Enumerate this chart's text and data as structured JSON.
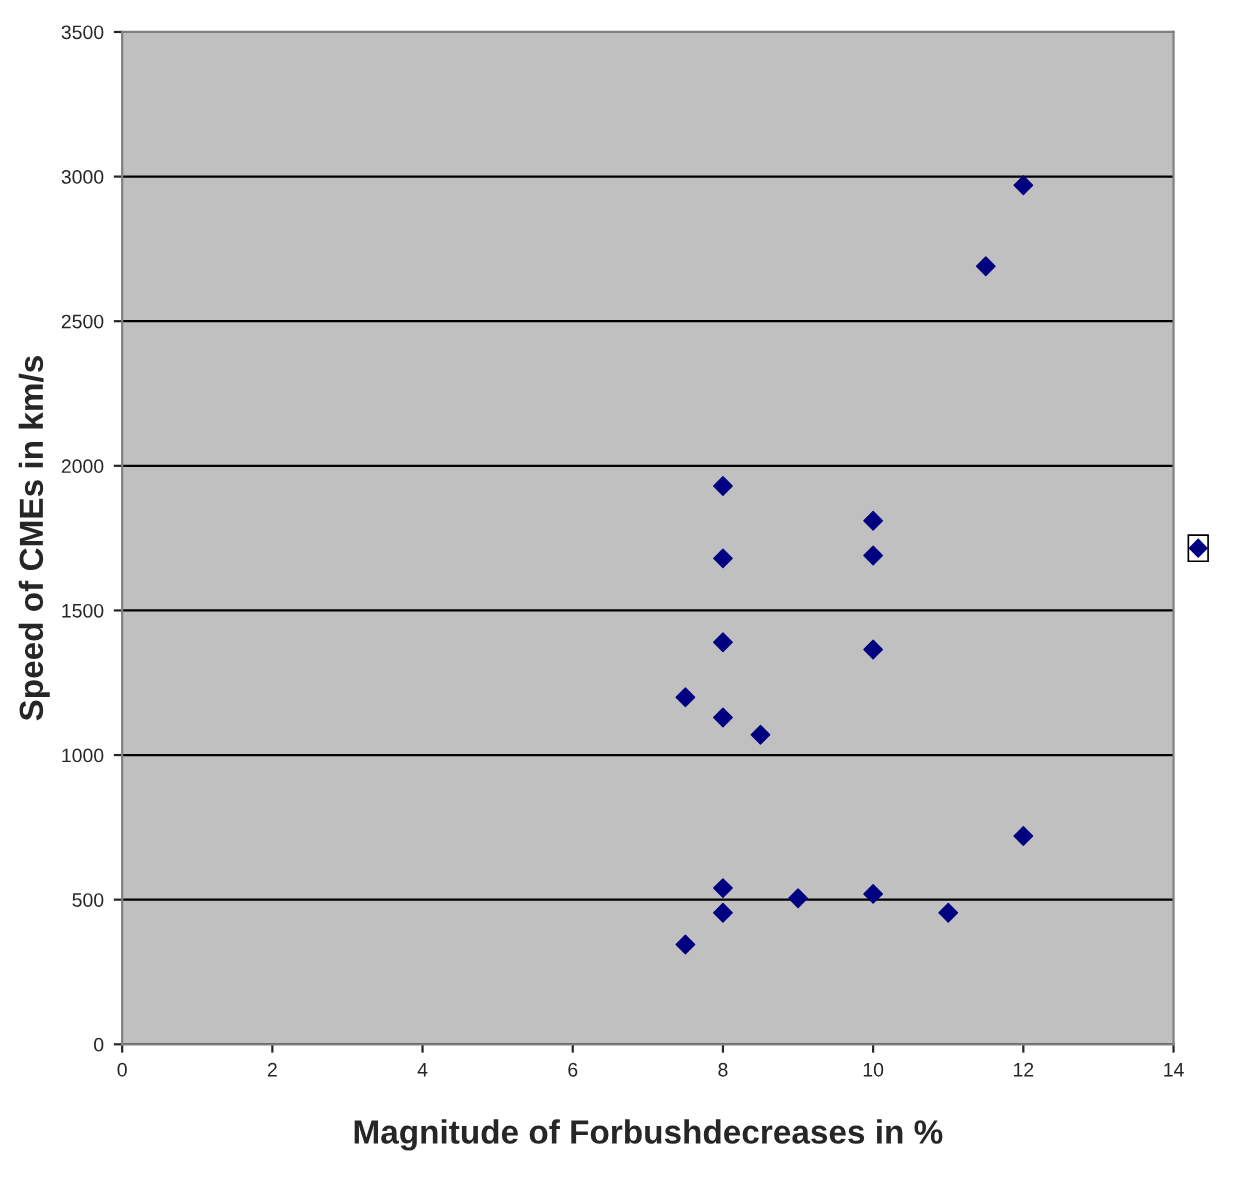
{
  "chart_data": {
    "type": "scatter",
    "xlabel": "Magnitude of Forbushdecreases in %",
    "ylabel": "Speed of CMEs in km/s",
    "series": [
      {
        "color": "#000080",
        "x": [
          7.5,
          7.5,
          8,
          8,
          8,
          8,
          8,
          8,
          8.5,
          9,
          10,
          10,
          10,
          10,
          11,
          11.5,
          12,
          12
        ],
        "values": [
          1200,
          345,
          1930,
          1680,
          1390,
          1130,
          540,
          455,
          1070,
          505,
          1810,
          1690,
          1365,
          520,
          455,
          2690,
          2970,
          720
        ]
      }
    ],
    "xlim": [
      0,
      14
    ],
    "xticks": [
      0,
      2,
      4,
      6,
      8,
      10,
      12,
      14
    ],
    "ylim": [
      0,
      3500
    ],
    "yticks": [
      0,
      500,
      1000,
      1500,
      2000,
      2500,
      3000,
      3500
    ],
    "grid": "y",
    "marker": "diamond"
  }
}
